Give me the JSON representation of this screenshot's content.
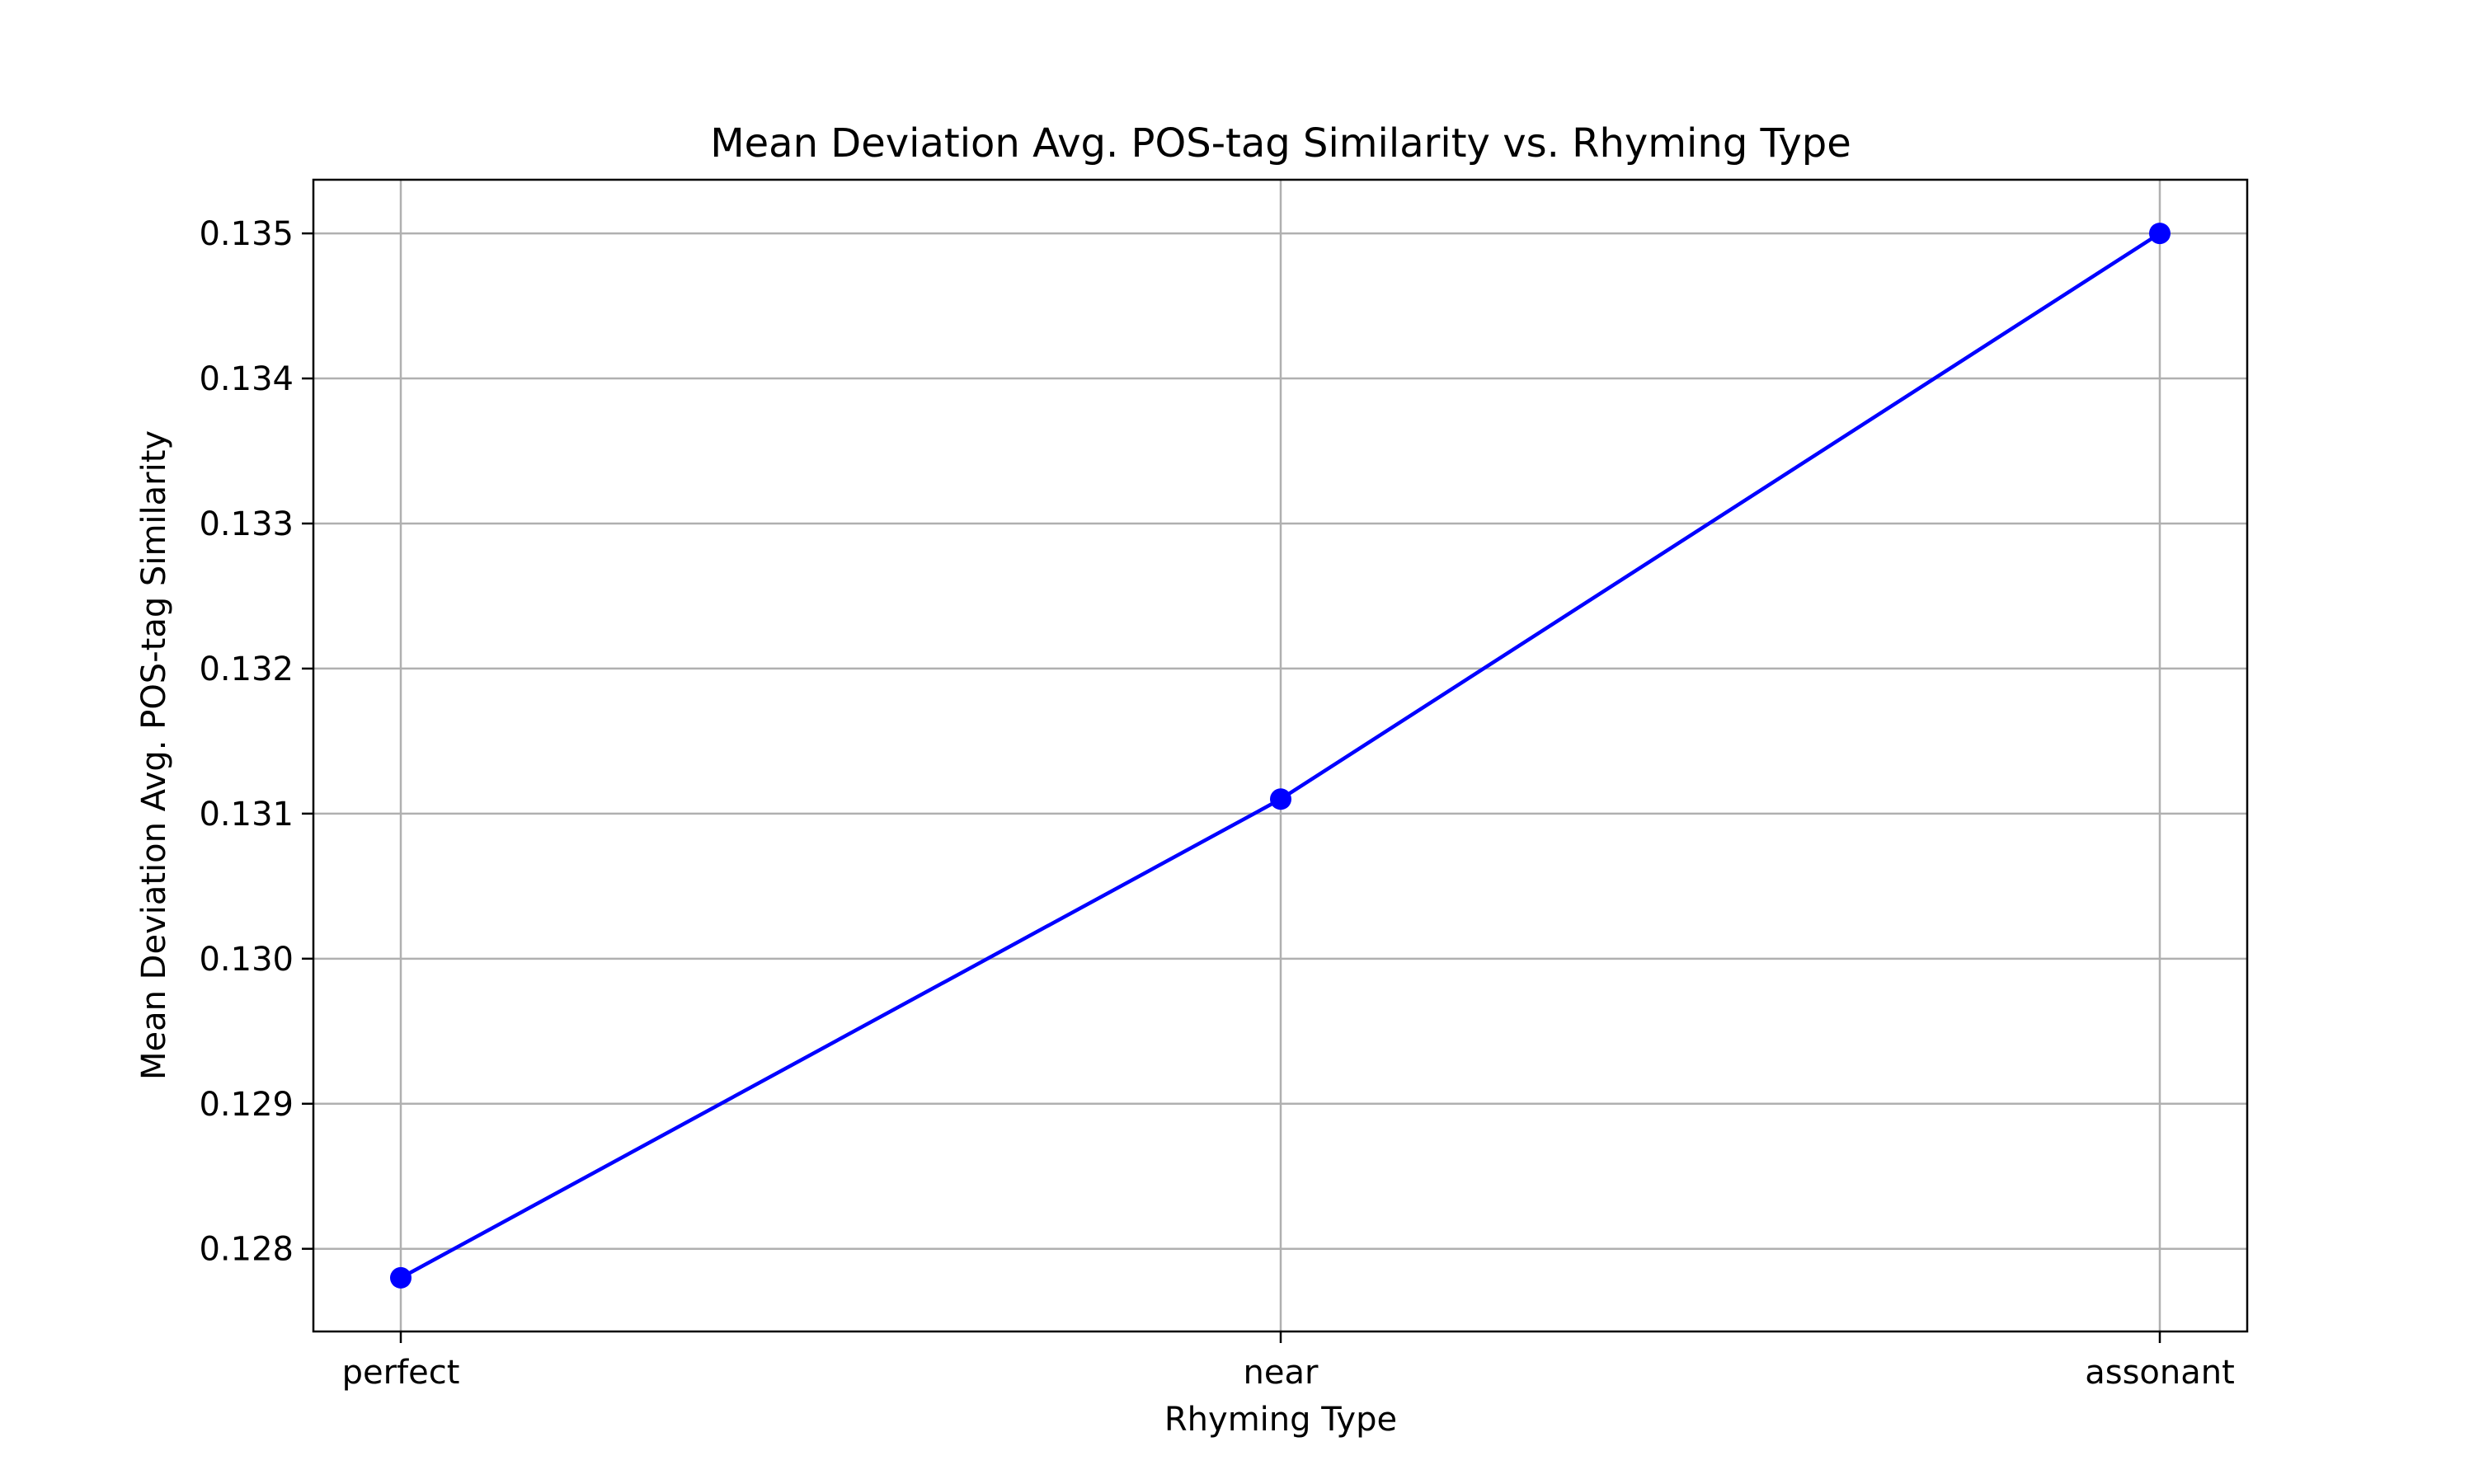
{
  "chart_data": {
    "type": "line",
    "title": "Mean Deviation Avg. POS-tag Similarity vs. Rhyming Type",
    "xlabel": "Rhyming Type",
    "ylabel": "Mean Deviation Avg. POS-tag Similarity",
    "categories": [
      "perfect",
      "near",
      "assonant"
    ],
    "series": [
      {
        "values": [
          0.1278,
          0.1311,
          0.135
        ],
        "color": "#0000ff",
        "marker": "circle"
      }
    ],
    "ylim": [
      0.12743,
      0.13537
    ],
    "yticks": [
      0.128,
      0.129,
      0.13,
      0.131,
      0.132,
      0.133,
      0.134,
      0.135
    ],
    "ytick_labels": [
      "0.128",
      "0.129",
      "0.130",
      "0.131",
      "0.132",
      "0.133",
      "0.134",
      "0.135"
    ],
    "grid": true,
    "legend": "none"
  }
}
